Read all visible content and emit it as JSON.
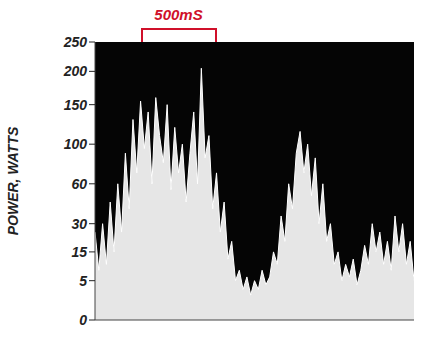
{
  "chart_data": {
    "type": "area",
    "y_label": "POWER, WATTS",
    "annotation": {
      "text": "500mS",
      "start": 300,
      "end": 800
    },
    "x": [
      0,
      25,
      50,
      75,
      100,
      125,
      150,
      175,
      200,
      225,
      250,
      275,
      300,
      325,
      350,
      375,
      400,
      425,
      450,
      475,
      500,
      525,
      550,
      575,
      600,
      625,
      650,
      675,
      700,
      725,
      750,
      775,
      800,
      825,
      850,
      875,
      900,
      925,
      950,
      975,
      1000,
      1025,
      1050,
      1075,
      1100,
      1125,
      1150,
      1175,
      1200,
      1225,
      1250,
      1275,
      1300,
      1325,
      1350,
      1375,
      1400,
      1425,
      1450,
      1475,
      1500,
      1525,
      1550,
      1575,
      1600,
      1625,
      1650,
      1675,
      1700,
      1725,
      1750,
      1775,
      1800,
      1825,
      1850,
      1875,
      1900,
      1925,
      1950,
      1975,
      2000,
      2025,
      2050,
      2075,
      2100
    ],
    "values": [
      25,
      8,
      30,
      10,
      45,
      15,
      60,
      25,
      90,
      40,
      130,
      70,
      155,
      95,
      140,
      60,
      160,
      110,
      80,
      150,
      55,
      120,
      70,
      100,
      45,
      90,
      140,
      60,
      205,
      85,
      110,
      40,
      70,
      25,
      45,
      12,
      20,
      5,
      8,
      3,
      6,
      2,
      5,
      3,
      8,
      4,
      6,
      15,
      10,
      35,
      20,
      60,
      40,
      90,
      115,
      70,
      100,
      50,
      85,
      30,
      60,
      20,
      30,
      10,
      15,
      5,
      10,
      6,
      12,
      4,
      8,
      18,
      10,
      30,
      15,
      25,
      10,
      20,
      8,
      35,
      15,
      30,
      10,
      20,
      5
    ],
    "color": "#ffffff",
    "xlim": [
      0,
      2100
    ],
    "ylim": [
      0,
      250
    ],
    "yticks": [
      0,
      5,
      15,
      30,
      60,
      100,
      150,
      200,
      250
    ],
    "tick_labels": "y",
    "grid": false
  }
}
